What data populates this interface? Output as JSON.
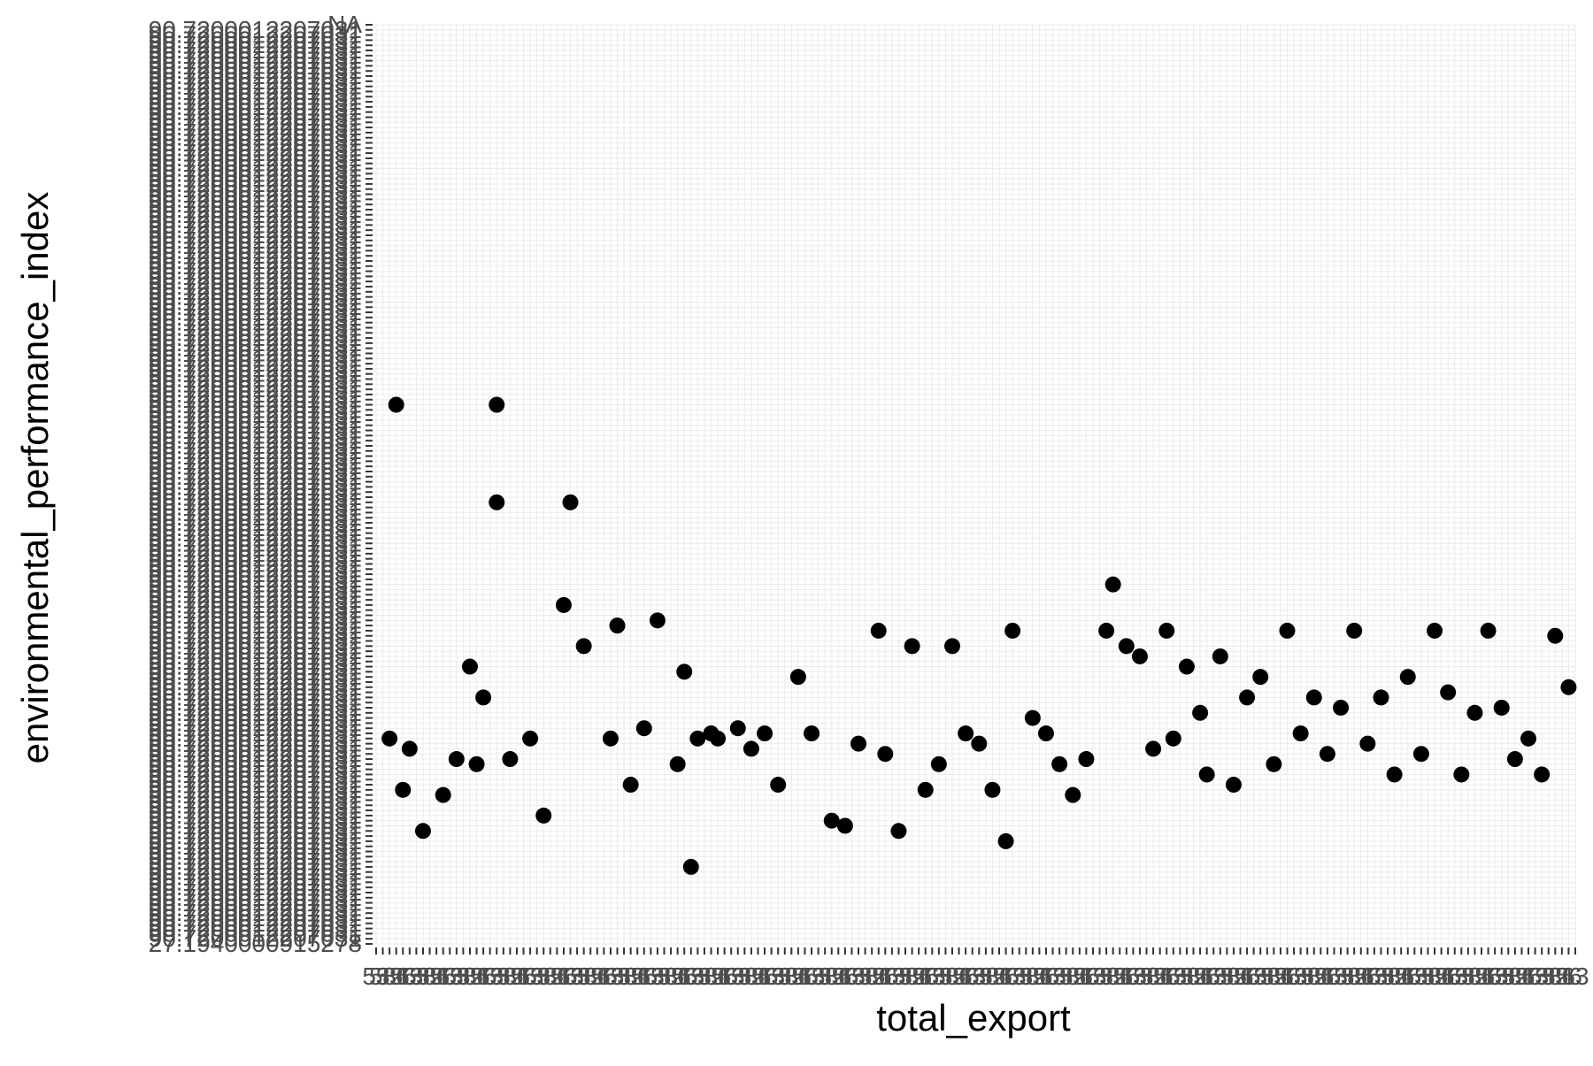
{
  "chart_data": {
    "type": "scatter",
    "title": "",
    "xlabel": "total_export",
    "ylabel": "environmental_performance_index",
    "x_scale": "categorical",
    "y_scale": "categorical",
    "grid": true,
    "legend": "none",
    "x_tick_count": 180,
    "y_tick_count": 180,
    "y_tick_labels_visible": [
      "27.1940000915278",
      "90.7200012207031",
      "NA"
    ],
    "x_tick_labels_visible": [
      "53",
      "58",
      "52",
      "81",
      "56",
      "63"
    ],
    "point_color": "#000000",
    "points": [
      {
        "x": 2,
        "y": 40
      },
      {
        "x": 4,
        "y": 30
      },
      {
        "x": 3,
        "y": 105
      },
      {
        "x": 5,
        "y": 38
      },
      {
        "x": 7,
        "y": 22
      },
      {
        "x": 10,
        "y": 29
      },
      {
        "x": 12,
        "y": 36
      },
      {
        "x": 14,
        "y": 54
      },
      {
        "x": 15,
        "y": 35
      },
      {
        "x": 16,
        "y": 48
      },
      {
        "x": 18,
        "y": 105
      },
      {
        "x": 18,
        "y": 86
      },
      {
        "x": 20,
        "y": 36
      },
      {
        "x": 23,
        "y": 40
      },
      {
        "x": 25,
        "y": 25
      },
      {
        "x": 28,
        "y": 66
      },
      {
        "x": 29,
        "y": 86
      },
      {
        "x": 31,
        "y": 58
      },
      {
        "x": 35,
        "y": 40
      },
      {
        "x": 36,
        "y": 62
      },
      {
        "x": 38,
        "y": 31
      },
      {
        "x": 40,
        "y": 42
      },
      {
        "x": 42,
        "y": 63
      },
      {
        "x": 45,
        "y": 35
      },
      {
        "x": 46,
        "y": 53
      },
      {
        "x": 47,
        "y": 15
      },
      {
        "x": 48,
        "y": 40
      },
      {
        "x": 50,
        "y": 41
      },
      {
        "x": 51,
        "y": 40
      },
      {
        "x": 54,
        "y": 42
      },
      {
        "x": 56,
        "y": 38
      },
      {
        "x": 58,
        "y": 41
      },
      {
        "x": 60,
        "y": 31
      },
      {
        "x": 63,
        "y": 52
      },
      {
        "x": 65,
        "y": 41
      },
      {
        "x": 68,
        "y": 24
      },
      {
        "x": 70,
        "y": 23
      },
      {
        "x": 72,
        "y": 39
      },
      {
        "x": 75,
        "y": 61
      },
      {
        "x": 76,
        "y": 37
      },
      {
        "x": 78,
        "y": 22
      },
      {
        "x": 80,
        "y": 58
      },
      {
        "x": 82,
        "y": 30
      },
      {
        "x": 84,
        "y": 35
      },
      {
        "x": 86,
        "y": 58
      },
      {
        "x": 88,
        "y": 41
      },
      {
        "x": 90,
        "y": 39
      },
      {
        "x": 92,
        "y": 30
      },
      {
        "x": 94,
        "y": 20
      },
      {
        "x": 95,
        "y": 61
      },
      {
        "x": 98,
        "y": 44
      },
      {
        "x": 100,
        "y": 41
      },
      {
        "x": 102,
        "y": 35
      },
      {
        "x": 104,
        "y": 29
      },
      {
        "x": 106,
        "y": 36
      },
      {
        "x": 109,
        "y": 61
      },
      {
        "x": 110,
        "y": 70
      },
      {
        "x": 112,
        "y": 58
      },
      {
        "x": 114,
        "y": 56
      },
      {
        "x": 116,
        "y": 38
      },
      {
        "x": 118,
        "y": 61
      },
      {
        "x": 119,
        "y": 40
      },
      {
        "x": 121,
        "y": 54
      },
      {
        "x": 123,
        "y": 45
      },
      {
        "x": 124,
        "y": 33
      },
      {
        "x": 126,
        "y": 56
      },
      {
        "x": 128,
        "y": 31
      },
      {
        "x": 130,
        "y": 48
      },
      {
        "x": 132,
        "y": 52
      },
      {
        "x": 134,
        "y": 35
      },
      {
        "x": 136,
        "y": 61
      },
      {
        "x": 138,
        "y": 41
      },
      {
        "x": 140,
        "y": 48
      },
      {
        "x": 142,
        "y": 37
      },
      {
        "x": 144,
        "y": 46
      },
      {
        "x": 146,
        "y": 61
      },
      {
        "x": 148,
        "y": 39
      },
      {
        "x": 150,
        "y": 48
      },
      {
        "x": 152,
        "y": 33
      },
      {
        "x": 154,
        "y": 52
      },
      {
        "x": 156,
        "y": 37
      },
      {
        "x": 158,
        "y": 61
      },
      {
        "x": 160,
        "y": 49
      },
      {
        "x": 162,
        "y": 33
      },
      {
        "x": 164,
        "y": 45
      },
      {
        "x": 166,
        "y": 61
      },
      {
        "x": 168,
        "y": 46
      },
      {
        "x": 170,
        "y": 36
      },
      {
        "x": 172,
        "y": 40
      },
      {
        "x": 174,
        "y": 33
      },
      {
        "x": 176,
        "y": 60
      },
      {
        "x": 178,
        "y": 50
      }
    ]
  }
}
